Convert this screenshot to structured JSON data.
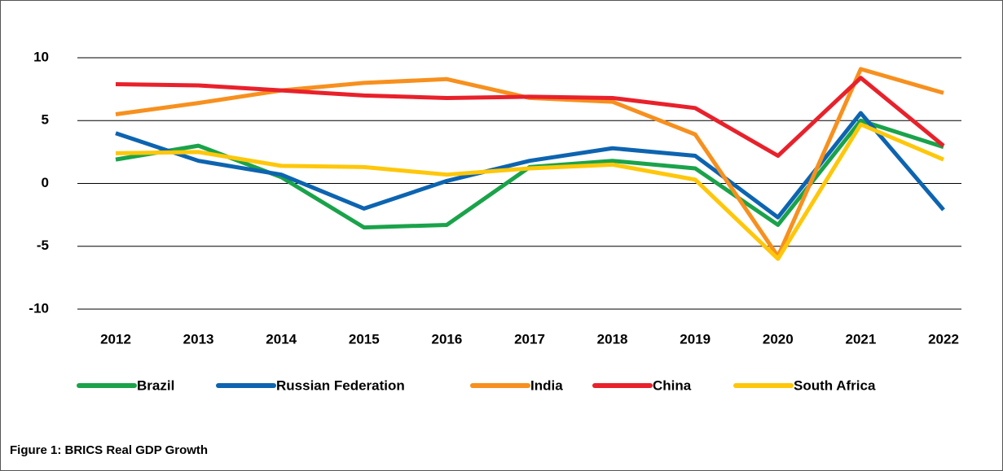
{
  "chart_data": {
    "type": "line",
    "caption": "Figure 1: BRICS Real GDP Growth",
    "categories": [
      "2012",
      "2013",
      "2014",
      "2015",
      "2016",
      "2017",
      "2018",
      "2019",
      "2020",
      "2021",
      "2022"
    ],
    "series": [
      {
        "name": "Brazil",
        "color": "#1aa34a",
        "values": [
          1.9,
          3.0,
          0.5,
          -3.5,
          -3.3,
          1.3,
          1.8,
          1.2,
          -3.3,
          5.0,
          2.9
        ]
      },
      {
        "name": "Russian Federation",
        "color": "#0d64b0",
        "values": [
          4.0,
          1.8,
          0.7,
          -2.0,
          0.2,
          1.8,
          2.8,
          2.2,
          -2.7,
          5.6,
          -2.1
        ]
      },
      {
        "name": "India",
        "color": "#f7901e",
        "values": [
          5.5,
          6.4,
          7.4,
          8.0,
          8.3,
          6.8,
          6.5,
          3.9,
          -5.8,
          9.1,
          7.2
        ]
      },
      {
        "name": "China",
        "color": "#e8212b",
        "values": [
          7.9,
          7.8,
          7.4,
          7.0,
          6.8,
          6.9,
          6.8,
          6.0,
          2.2,
          8.4,
          3.0
        ]
      },
      {
        "name": "South Africa",
        "color": "#ffc70a",
        "values": [
          2.4,
          2.5,
          1.4,
          1.3,
          0.7,
          1.2,
          1.5,
          0.3,
          -6.0,
          4.7,
          1.9
        ]
      }
    ],
    "ylim": [
      -10,
      10
    ],
    "yticks": [
      10,
      5,
      0,
      -5,
      -10
    ],
    "grid": true,
    "legend": "bottom"
  }
}
